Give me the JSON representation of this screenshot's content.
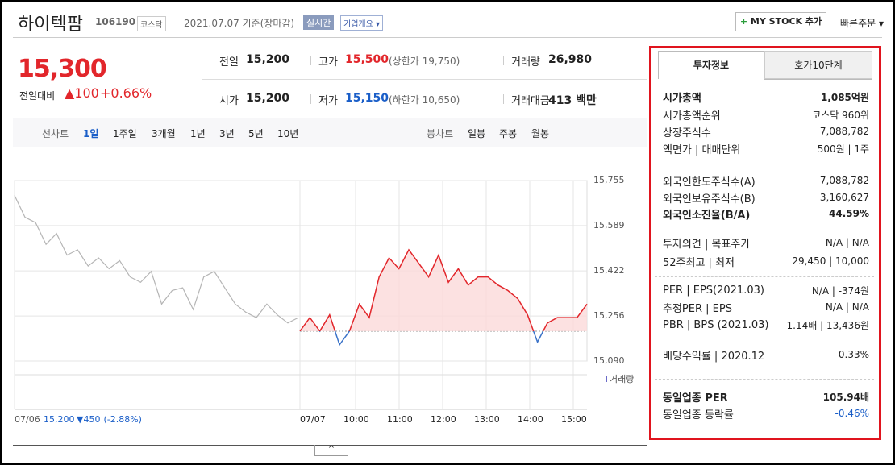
{
  "header": {
    "title": "하이텍팜",
    "code": "106190",
    "market": "코스닥",
    "date": "2021.07.07 기준(장마감)",
    "realtime": "실시간",
    "company_info": "기업개요",
    "my_stock": "MY STOCK 추가",
    "quick_order": "빠른주문"
  },
  "quote": {
    "price": "15,300",
    "change_label": "전일대비",
    "change": "100",
    "change_pct": "+0.66%",
    "rows": [
      [
        {
          "label": "전일",
          "value": "15,200"
        },
        {
          "label": "고가",
          "value": "15,500",
          "sub": "(상한가 19,750)"
        },
        {
          "label": "거래량",
          "value": "26,980"
        }
      ],
      [
        {
          "label": "시가",
          "value": "15,200"
        },
        {
          "label": "저가",
          "value": "15,150",
          "sub": "(하한가 10,650)"
        },
        {
          "label": "거래대금",
          "value": "413 백만"
        }
      ]
    ]
  },
  "chart_tabs": {
    "line_label": "선차트",
    "periods": [
      "1일",
      "1주일",
      "3개월",
      "1년",
      "3년",
      "5년",
      "10년"
    ],
    "candle_label": "봉차트",
    "candle_periods": [
      "일봉",
      "주봉",
      "월봉"
    ]
  },
  "chart_data": {
    "type": "line",
    "yticks": [
      {
        "value": 15755,
        "label": "15,755"
      },
      {
        "value": 15589,
        "label": "15,589"
      },
      {
        "value": 15422,
        "label": "15,422"
      },
      {
        "value": 15256,
        "label": "15,256"
      },
      {
        "value": 15090,
        "label": "15,090"
      }
    ],
    "ylim": [
      15090,
      15755
    ],
    "base": 15200,
    "time_labels": [
      "07/06",
      "07/07",
      "10:00",
      "11:00",
      "12:00",
      "13:00",
      "14:00",
      "15:00"
    ],
    "prev_summary": {
      "close": "15,200",
      "change": "450",
      "pct": "(-2.88%)"
    },
    "volume_label": "거래량",
    "series": [
      {
        "name": "07/06",
        "color": "#b5b5b5",
        "values": [
          15700,
          15620,
          15600,
          15520,
          15560,
          15480,
          15500,
          15440,
          15470,
          15430,
          15460,
          15400,
          15380,
          15420,
          15300,
          15350,
          15360,
          15280,
          15400,
          15420,
          15360,
          15300,
          15270,
          15250,
          15300,
          15260,
          15230,
          15250
        ]
      },
      {
        "name": "07/07",
        "color": "#e2262b",
        "values": [
          15200,
          15250,
          15200,
          15260,
          15150,
          15200,
          15300,
          15250,
          15400,
          15470,
          15430,
          15500,
          15450,
          15400,
          15480,
          15380,
          15430,
          15370,
          15400,
          15400,
          15370,
          15350,
          15320,
          15260,
          15160,
          15230,
          15250,
          15250,
          15250,
          15300
        ]
      }
    ]
  },
  "invest": {
    "tabs": [
      "투자정보",
      "호가10단계"
    ],
    "groups": [
      [
        {
          "label": "시가총액",
          "value": "1,085억원"
        },
        {
          "label": "시가총액순위",
          "value": "코스닥 960위"
        },
        {
          "label": "상장주식수",
          "value": "7,088,782"
        },
        {
          "label": "액면가 | 매매단위",
          "value": "500원 | 1주"
        }
      ],
      [
        {
          "label": "외국인한도주식수(A)",
          "value": "7,088,782"
        },
        {
          "label": "외국인보유주식수(B)",
          "value": "3,160,627"
        },
        {
          "label": "외국인소진율(B/A)",
          "value": "44.59%"
        }
      ],
      [
        {
          "label": "투자의견 | 목표주가",
          "value": "N/A | N/A"
        },
        {
          "label": "52주최고 | 최저",
          "value": "29,450 | 10,000"
        }
      ],
      [
        {
          "label": "PER | EPS(2021.03)",
          "value": "N/A | -374원"
        },
        {
          "label": "추정PER | EPS",
          "value": "N/A | N/A"
        },
        {
          "label": "PBR | BPS (2021.03)",
          "value": "1.14배 | 13,436원"
        },
        {
          "label": "배당수익률 | 2020.12",
          "value": "0.33%"
        }
      ],
      [
        {
          "label": "동일업종 PER",
          "value": "105.94배"
        },
        {
          "label": "동일업종 등락률",
          "value": "-0.46%"
        }
      ]
    ]
  }
}
